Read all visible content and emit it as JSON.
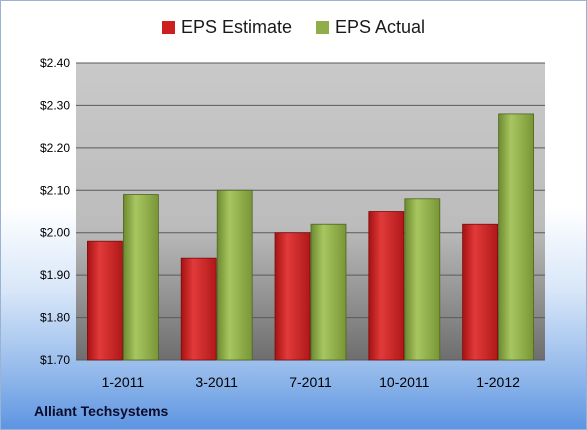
{
  "footer": {
    "company": "Alliant Techsystems"
  },
  "chart_data": {
    "type": "bar",
    "title": "",
    "xlabel": "",
    "ylabel": "",
    "categories": [
      "1-2011",
      "3-2011",
      "7-2011",
      "10-2011",
      "1-2012"
    ],
    "series": [
      {
        "name": "EPS Estimate",
        "color": "#cc1f1f",
        "values": [
          1.98,
          1.94,
          2.0,
          2.05,
          2.02
        ]
      },
      {
        "name": "EPS Actual",
        "color": "#8fae4a",
        "values": [
          2.09,
          2.1,
          2.02,
          2.08,
          2.28
        ]
      }
    ],
    "ylim": [
      1.7,
      2.4
    ],
    "yticks": [
      "$1.70",
      "$1.80",
      "$1.90",
      "$2.00",
      "$2.10",
      "$2.20",
      "$2.30",
      "$2.40"
    ],
    "grid": true,
    "legend": "top-center"
  }
}
